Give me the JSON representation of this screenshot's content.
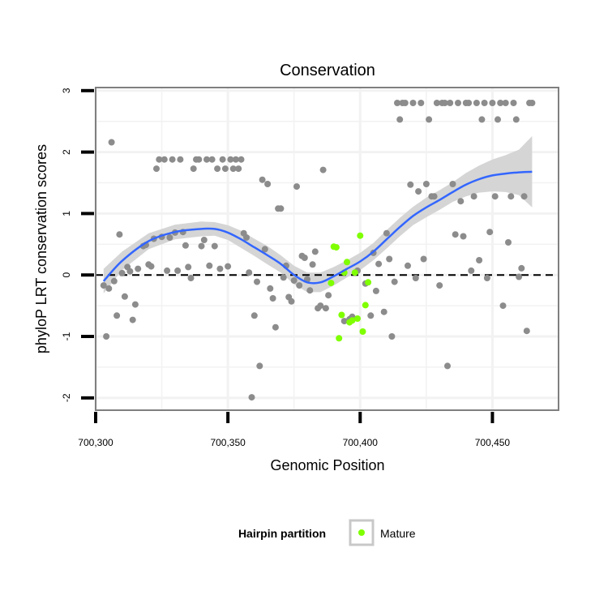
{
  "chart_data": {
    "type": "scatter",
    "title": "Conservation",
    "xlabel": "Genomic Position",
    "ylabel": "phyloP LRT conservation scores",
    "xlim": [
      700300,
      700475
    ],
    "ylim": [
      -2.2,
      3.05
    ],
    "x_ticks": [
      700300,
      700350,
      700400,
      700450
    ],
    "x_tick_labels": [
      "700,300",
      "700,350",
      "700,400",
      "700,450"
    ],
    "y_ticks": [
      -2,
      -1,
      0,
      1,
      2,
      3
    ],
    "y_tick_labels": [
      "-2",
      "-1",
      "0",
      "1",
      "2",
      "3"
    ],
    "reference_line": {
      "y": 0,
      "style": "dashed"
    },
    "grid": true,
    "colors": {
      "other": "#8c8c8c",
      "mature": "#7fff00",
      "smooth_line": "#3366ff",
      "confidence_band": "#d3d3d3",
      "panel_border": "#7f7f7f",
      "grid": "#f2f2f2"
    },
    "series": [
      {
        "key": "other",
        "points": [
          [
            700303,
            -0.17
          ],
          [
            700304,
            -1.0
          ],
          [
            700305,
            -0.22
          ],
          [
            700306,
            2.16
          ],
          [
            700307,
            -0.1
          ],
          [
            700308,
            -0.66
          ],
          [
            700309,
            0.66
          ],
          [
            700310,
            0.03
          ],
          [
            700311,
            -0.35
          ],
          [
            700312,
            0.13
          ],
          [
            700313,
            0.06
          ],
          [
            700314,
            -0.73
          ],
          [
            700315,
            -0.48
          ],
          [
            700316,
            0.1
          ],
          [
            700318,
            0.47
          ],
          [
            700319,
            0.49
          ],
          [
            700320,
            0.17
          ],
          [
            700321,
            0.14
          ],
          [
            700322,
            0.59
          ],
          [
            700323,
            1.73
          ],
          [
            700324,
            1.88
          ],
          [
            700325,
            0.62
          ],
          [
            700326,
            1.88
          ],
          [
            700327,
            0.07
          ],
          [
            700328,
            0.61
          ],
          [
            700329,
            1.88
          ],
          [
            700330,
            0.69
          ],
          [
            700331,
            0.07
          ],
          [
            700332,
            1.88
          ],
          [
            700333,
            0.7
          ],
          [
            700334,
            0.48
          ],
          [
            700335,
            0.13
          ],
          [
            700336,
            -0.05
          ],
          [
            700337,
            1.73
          ],
          [
            700338,
            1.88
          ],
          [
            700339,
            1.88
          ],
          [
            700340,
            0.47
          ],
          [
            700341,
            0.57
          ],
          [
            700342,
            1.88
          ],
          [
            700343,
            0.15
          ],
          [
            700344,
            1.88
          ],
          [
            700345,
            0.47
          ],
          [
            700346,
            1.73
          ],
          [
            700347,
            0.1
          ],
          [
            700348,
            1.88
          ],
          [
            700349,
            1.73
          ],
          [
            700350,
            0.14
          ],
          [
            700351,
            1.88
          ],
          [
            700352,
            1.73
          ],
          [
            700353,
            1.88
          ],
          [
            700354,
            1.73
          ],
          [
            700355,
            1.88
          ],
          [
            700356,
            0.68
          ],
          [
            700357,
            0.61
          ],
          [
            700358,
            0.04
          ],
          [
            700359,
            -1.99
          ],
          [
            700360,
            -0.66
          ],
          [
            700361,
            -0.11
          ],
          [
            700362,
            -1.48
          ],
          [
            700363,
            1.55
          ],
          [
            700364,
            0.42
          ],
          [
            700365,
            1.48
          ],
          [
            700366,
            -0.22
          ],
          [
            700367,
            -0.38
          ],
          [
            700368,
            -0.85
          ],
          [
            700369,
            1.08
          ],
          [
            700370,
            1.08
          ],
          [
            700371,
            -0.04
          ],
          [
            700372,
            0.15
          ],
          [
            700373,
            -0.36
          ],
          [
            700374,
            -0.43
          ],
          [
            700375,
            -0.09
          ],
          [
            700376,
            1.44
          ],
          [
            700377,
            -0.17
          ],
          [
            700378,
            0.31
          ],
          [
            700379,
            0.28
          ],
          [
            700380,
            -0.07
          ],
          [
            700381,
            -0.25
          ],
          [
            700382,
            0.17
          ],
          [
            700383,
            0.38
          ],
          [
            700384,
            -0.54
          ],
          [
            700385,
            -0.5
          ],
          [
            700386,
            1.71
          ],
          [
            700387,
            -0.54
          ],
          [
            700388,
            -0.33
          ],
          [
            700394,
            -0.75
          ],
          [
            700396,
            -0.72
          ],
          [
            700397,
            -0.68
          ],
          [
            700399,
            0.07
          ],
          [
            700402,
            -0.14
          ],
          [
            700404,
            -0.66
          ],
          [
            700405,
            0.36
          ],
          [
            700406,
            -0.26
          ],
          [
            700407,
            0.18
          ],
          [
            700409,
            -0.6
          ],
          [
            700410,
            0.68
          ],
          [
            700411,
            0.26
          ],
          [
            700412,
            -1.0
          ],
          [
            700413,
            -0.11
          ],
          [
            700414,
            2.8
          ],
          [
            700415,
            2.53
          ],
          [
            700416,
            2.8
          ],
          [
            700417,
            2.8
          ],
          [
            700418,
            0.15
          ],
          [
            700419,
            1.47
          ],
          [
            700420,
            2.8
          ],
          [
            700421,
            -0.05
          ],
          [
            700422,
            1.36
          ],
          [
            700423,
            2.8
          ],
          [
            700424,
            0.26
          ],
          [
            700425,
            1.48
          ],
          [
            700426,
            2.53
          ],
          [
            700427,
            1.28
          ],
          [
            700428,
            1.28
          ],
          [
            700429,
            2.8
          ],
          [
            700430,
            -0.17
          ],
          [
            700431,
            2.8
          ],
          [
            700432,
            2.8
          ],
          [
            700433,
            -1.48
          ],
          [
            700434,
            2.8
          ],
          [
            700435,
            1.48
          ],
          [
            700436,
            0.66
          ],
          [
            700437,
            2.8
          ],
          [
            700438,
            1.2
          ],
          [
            700439,
            0.63
          ],
          [
            700440,
            2.8
          ],
          [
            700441,
            2.8
          ],
          [
            700442,
            0.07
          ],
          [
            700443,
            1.28
          ],
          [
            700444,
            2.8
          ],
          [
            700445,
            0.24
          ],
          [
            700446,
            2.53
          ],
          [
            700447,
            2.8
          ],
          [
            700448,
            -0.05
          ],
          [
            700449,
            0.7
          ],
          [
            700450,
            2.8
          ],
          [
            700451,
            1.28
          ],
          [
            700452,
            2.53
          ],
          [
            700453,
            2.8
          ],
          [
            700454,
            -0.5
          ],
          [
            700455,
            2.8
          ],
          [
            700456,
            0.53
          ],
          [
            700457,
            1.28
          ],
          [
            700458,
            2.8
          ],
          [
            700459,
            2.53
          ],
          [
            700460,
            -0.03
          ],
          [
            700461,
            0.11
          ],
          [
            700462,
            1.28
          ],
          [
            700463,
            -0.91
          ],
          [
            700464,
            2.8
          ],
          [
            700465,
            2.8
          ]
        ]
      },
      {
        "key": "mature",
        "name": "Mature",
        "points": [
          [
            700389,
            -0.13
          ],
          [
            700390,
            0.46
          ],
          [
            700391,
            0.45
          ],
          [
            700392,
            -1.03
          ],
          [
            700393,
            -0.65
          ],
          [
            700394,
            0.04
          ],
          [
            700395,
            0.21
          ],
          [
            700396,
            -0.77
          ],
          [
            700397,
            -0.74
          ],
          [
            700398,
            0.04
          ],
          [
            700399,
            -0.71
          ],
          [
            700400,
            0.64
          ],
          [
            700401,
            -0.92
          ],
          [
            700402,
            -0.49
          ],
          [
            700403,
            -0.12
          ]
        ]
      }
    ],
    "smooth": {
      "x": [
        700303,
        700310,
        700320,
        700330,
        700340,
        700345,
        700350,
        700355,
        700360,
        700365,
        700370,
        700375,
        700380,
        700385,
        700390,
        700395,
        700400,
        700405,
        700410,
        700415,
        700420,
        700425,
        700430,
        700435,
        700440,
        700445,
        700450,
        700455,
        700460,
        700465
      ],
      "y": [
        -0.1,
        0.23,
        0.55,
        0.7,
        0.75,
        0.75,
        0.69,
        0.58,
        0.45,
        0.32,
        0.18,
        0.0,
        -0.12,
        -0.12,
        -0.02,
        0.1,
        0.22,
        0.38,
        0.58,
        0.78,
        0.96,
        1.1,
        1.22,
        1.35,
        1.47,
        1.56,
        1.62,
        1.65,
        1.67,
        1.68
      ],
      "lower": [
        -0.3,
        0.08,
        0.42,
        0.58,
        0.63,
        0.64,
        0.57,
        0.44,
        0.31,
        0.17,
        0.04,
        -0.15,
        -0.28,
        -0.28,
        -0.17,
        -0.04,
        0.08,
        0.24,
        0.43,
        0.63,
        0.81,
        0.94,
        1.06,
        1.19,
        1.28,
        1.34,
        1.36,
        1.35,
        1.3,
        1.1
      ],
      "upper": [
        0.1,
        0.38,
        0.68,
        0.82,
        0.87,
        0.86,
        0.81,
        0.72,
        0.59,
        0.47,
        0.32,
        0.15,
        0.04,
        0.04,
        0.13,
        0.24,
        0.36,
        0.52,
        0.73,
        0.93,
        1.11,
        1.26,
        1.38,
        1.51,
        1.66,
        1.78,
        1.88,
        1.95,
        2.04,
        2.26
      ]
    },
    "legend": {
      "title": "Hairpin partition",
      "position": "bottom",
      "items": [
        "Mature"
      ]
    }
  }
}
